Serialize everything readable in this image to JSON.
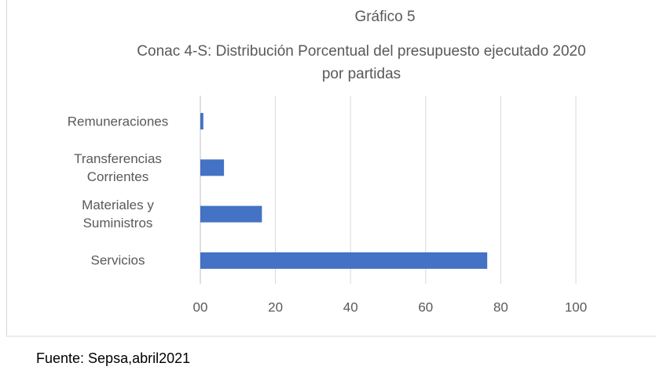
{
  "chart_data": {
    "type": "barh",
    "title": "Gráfico 5",
    "subtitle": "Conac 4-S: Distribución Porcentual del presupuesto ejecutado 2020 por partidas",
    "categories": [
      "Remuneraciones",
      "Transferencias Corrientes",
      "Materiales y Suministros",
      "Servicios"
    ],
    "values": [
      0.8,
      6.3,
      16.4,
      76.4
    ],
    "color": "#4472c4",
    "xlim": [
      0,
      100
    ],
    "xticks": [
      {
        "value": 0,
        "label": "00"
      },
      20,
      40,
      60,
      80,
      100
    ],
    "grid": true,
    "source": "Fuente: Sepsa,abril2021"
  }
}
